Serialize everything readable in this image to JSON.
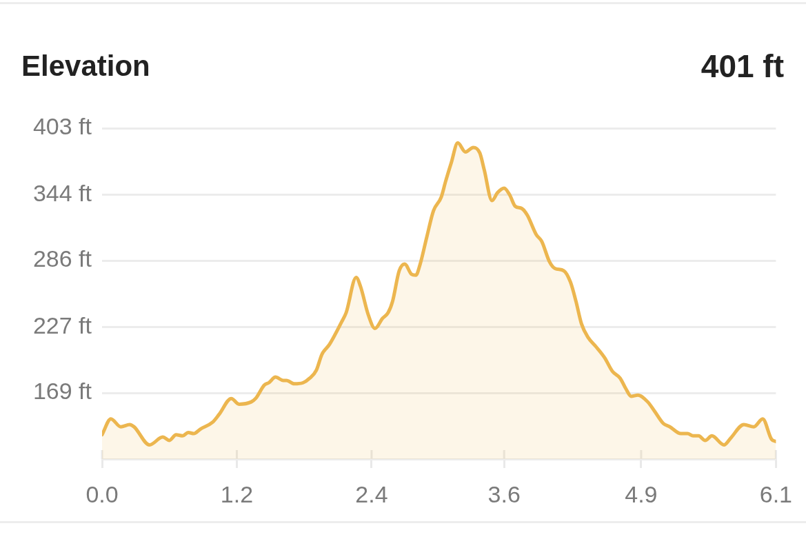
{
  "chart_data": {
    "type": "area",
    "title": "Elevation",
    "annotations": [
      "401 ft"
    ],
    "x": [
      0,
      0.08,
      0.17,
      0.25,
      0.29,
      0.43,
      0.55,
      0.61,
      0.67,
      0.73,
      0.78,
      0.83,
      0.89,
      1.0,
      1.06,
      1.17,
      1.24,
      1.35,
      1.39,
      1.47,
      1.51,
      1.57,
      1.64,
      1.67,
      1.74,
      1.82,
      1.88,
      1.94,
      1.99,
      2.06,
      2.17,
      2.21,
      2.3,
      2.34,
      2.41,
      2.47,
      2.54,
      2.59,
      2.63,
      2.69,
      2.74,
      2.8,
      2.84,
      2.88,
      2.94,
      3.0,
      3.07,
      3.11,
      3.16,
      3.22,
      3.29,
      3.36,
      3.42,
      3.46,
      3.53,
      3.58,
      3.64,
      3.69,
      3.74,
      3.8,
      3.85,
      3.93,
      3.98,
      4.05,
      4.1,
      4.18,
      4.24,
      4.29,
      4.34,
      4.4,
      4.47,
      4.55,
      4.62,
      4.69,
      4.74,
      4.79,
      4.85,
      4.94,
      5.0,
      5.08,
      5.14,
      5.24,
      5.3,
      5.35,
      5.4,
      5.46,
      5.52,
      5.63,
      5.69,
      5.81,
      5.9,
      5.98,
      6.06,
      6.1
    ],
    "values": [
      132,
      146,
      139,
      141,
      139,
      123,
      130,
      127,
      132,
      131,
      134,
      133,
      137,
      143,
      150,
      164,
      159,
      161,
      164,
      176,
      178,
      183,
      180,
      180,
      177,
      178,
      182,
      189,
      203,
      212,
      232,
      240,
      271,
      263,
      238,
      226,
      235,
      240,
      250,
      277,
      283,
      274,
      273,
      283,
      307,
      330,
      342,
      356,
      372,
      390,
      382,
      386,
      381,
      366,
      339,
      346,
      350,
      344,
      334,
      332,
      326,
      309,
      303,
      285,
      279,
      277,
      267,
      250,
      230,
      218,
      210,
      200,
      188,
      182,
      173,
      166,
      167,
      161,
      153,
      142,
      139,
      133,
      133,
      131,
      131,
      127,
      131,
      123,
      129,
      141,
      139,
      146,
      128,
      126
    ],
    "color": "#ecb64f",
    "xlim": [
      0,
      6.1
    ],
    "xticks": [
      {
        "value": 0,
        "label": "0.0"
      },
      {
        "value": 1.22,
        "label": "1.2"
      },
      {
        "value": 2.44,
        "label": "2.4"
      },
      {
        "value": 3.64,
        "label": "3.6"
      },
      {
        "value": 4.88,
        "label": "4.9"
      },
      6.1
    ],
    "ylim": [
      110.5,
      403
    ],
    "yticks": [
      {
        "value": 169,
        "label": "169 ft"
      },
      {
        "value": 227.4,
        "label": "227 ft"
      },
      {
        "value": 286,
        "label": "286 ft"
      },
      {
        "value": 344.4,
        "label": "344 ft"
      },
      {
        "value": 403,
        "label": "403 ft"
      }
    ],
    "grid": "y",
    "marker": "none"
  }
}
